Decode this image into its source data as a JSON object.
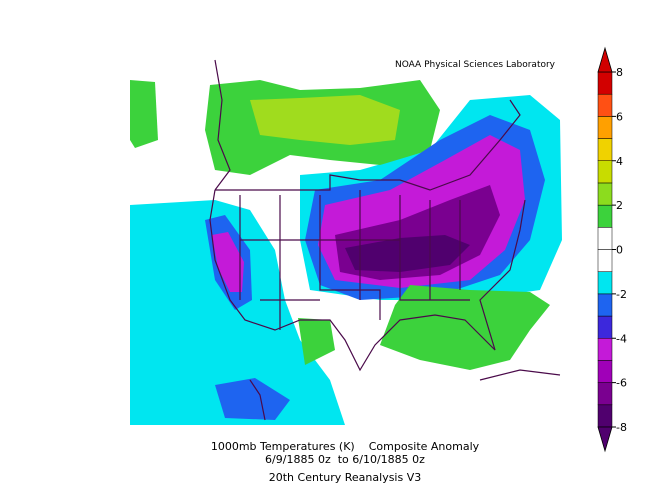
{
  "header": {
    "credit": "NOAA Physical Sciences Laboratory"
  },
  "colorbar": {
    "lim": [
      -8,
      8
    ],
    "ticks": [
      8,
      6,
      4,
      2,
      0,
      -2,
      -4,
      -6,
      -8
    ],
    "colors": [
      "#50006e",
      "#7a0090",
      "#a000b8",
      "#c41ad8",
      "#3c28dc",
      "#1e64f0",
      "#00e6f0",
      "#ffffff",
      "#ffffff",
      "#3cd23c",
      "#8cdc1e",
      "#c8dc00",
      "#f0d200",
      "#ffa000",
      "#ff5014",
      "#d20000"
    ]
  },
  "caption": {
    "line1": "1000mb Temperatures (K)    Composite Anomaly",
    "line2": "6/9/1885 0z  to 6/10/1885 0z",
    "line3": "20th Century Reanalysis V3"
  }
}
